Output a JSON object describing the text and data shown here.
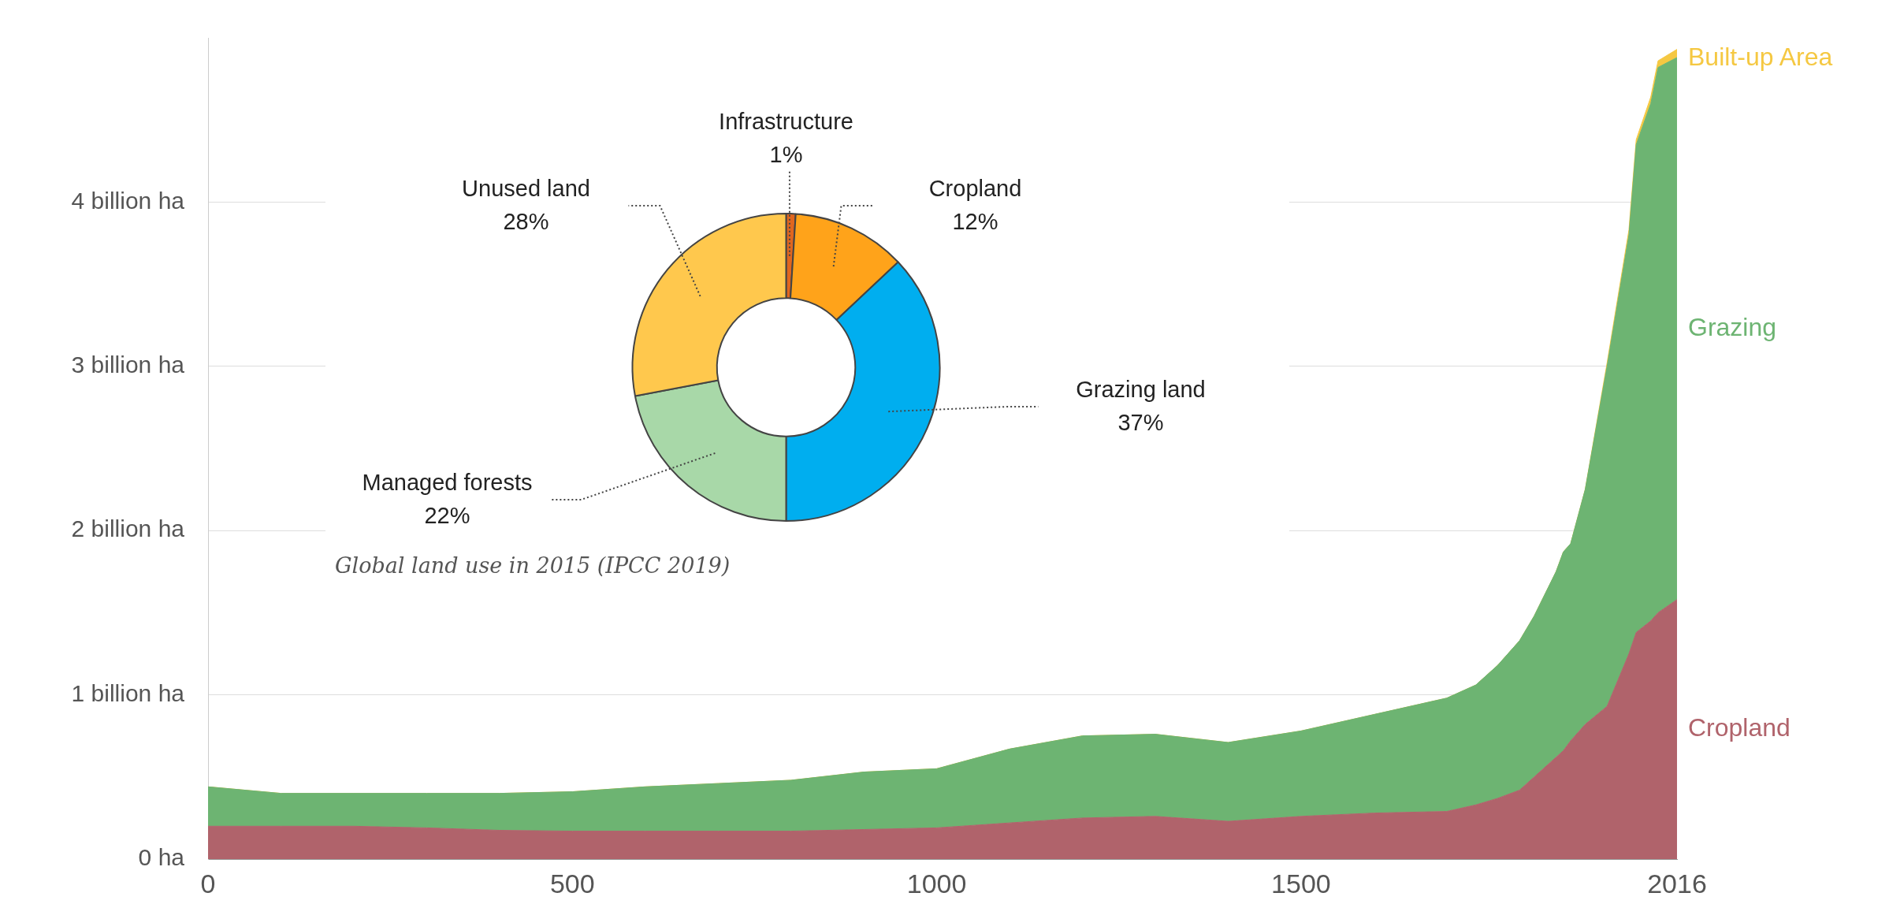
{
  "chart_data": [
    {
      "type": "area",
      "stacked": true,
      "x": [
        0,
        100,
        200,
        300,
        400,
        500,
        600,
        700,
        800,
        900,
        1000,
        1100,
        1200,
        1300,
        1400,
        1500,
        1600,
        1700,
        1740,
        1770,
        1800,
        1820,
        1850,
        1860,
        1870,
        1890,
        1920,
        1950,
        1960,
        1980,
        1990,
        2016
      ],
      "series": [
        {
          "name": "Cropland",
          "color": "#b0636b",
          "values": [
            0.2,
            0.2,
            0.2,
            0.19,
            0.175,
            0.17,
            0.17,
            0.17,
            0.17,
            0.18,
            0.19,
            0.22,
            0.25,
            0.26,
            0.23,
            0.26,
            0.28,
            0.29,
            0.33,
            0.37,
            0.42,
            0.5,
            0.62,
            0.66,
            0.72,
            0.82,
            0.93,
            1.25,
            1.38,
            1.45,
            1.5,
            1.58
          ]
        },
        {
          "name": "Grazing",
          "color": "#6db472",
          "values": [
            0.24,
            0.2,
            0.2,
            0.21,
            0.225,
            0.24,
            0.27,
            0.29,
            0.31,
            0.35,
            0.36,
            0.45,
            0.5,
            0.5,
            0.48,
            0.52,
            0.6,
            0.69,
            0.73,
            0.81,
            0.91,
            0.98,
            1.13,
            1.21,
            1.2,
            1.43,
            2.07,
            2.55,
            2.97,
            3.15,
            3.32,
            3.3
          ]
        },
        {
          "name": "Built-up Area",
          "color": "#f5c842",
          "values": [
            0,
            0,
            0,
            0,
            0,
            0,
            0,
            0,
            0,
            0,
            0,
            0,
            0,
            0,
            0,
            0,
            0,
            0,
            0,
            0,
            0,
            0,
            0,
            0,
            0,
            0,
            0.02,
            0.03,
            0.03,
            0.04,
            0.04,
            0.05
          ]
        }
      ],
      "xlim": [
        0,
        2016
      ],
      "xticks": [
        0,
        500,
        1000,
        1500,
        2016
      ],
      "ylim": [
        0,
        5
      ],
      "yticks": [
        {
          "value": 0,
          "label": "0 ha"
        },
        {
          "value": 1,
          "label": "1 billion ha"
        },
        {
          "value": 2,
          "label": "2 billion ha"
        },
        {
          "value": 3,
          "label": "3 billion ha"
        },
        {
          "value": 4,
          "label": "4 billion ha"
        }
      ],
      "grid": "y"
    },
    {
      "type": "donut",
      "categories": [
        "Infrastructure",
        "Cropland",
        "Grazing land",
        "Managed forests",
        "Unused land"
      ],
      "values": [
        1,
        12,
        37,
        22,
        28
      ],
      "colors": [
        "#e0661f",
        "#ffa31a",
        "#00aeef",
        "#a8d8a8",
        "#ffc84d"
      ],
      "value_labels": [
        "1%",
        "12%",
        "37%",
        "22%",
        "28%"
      ],
      "annotations": [
        "Global land use in 2015 (IPCC 2019)"
      ]
    }
  ]
}
